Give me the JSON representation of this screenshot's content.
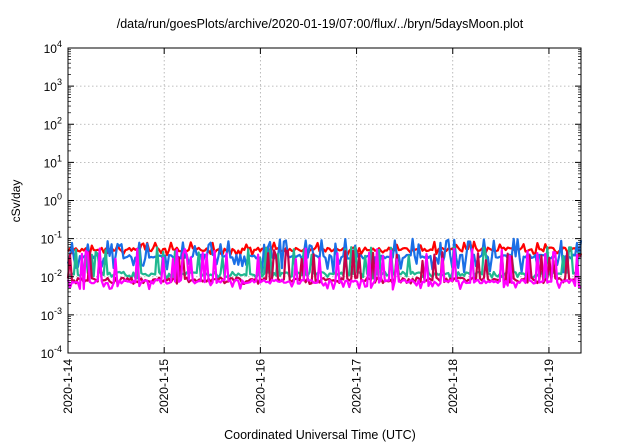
{
  "chart_data": {
    "type": "line",
    "title": "/data/run/goesPlots/archive/2020-01-19/07:00/flux/../bryn/5daysMoon.plot",
    "xlabel": "Coordinated Universal Time (UTC)",
    "ylabel": "cSv/day",
    "y_scale": "log",
    "grid": true,
    "xlim": [
      "2020-01-14 00:00",
      "2020-01-19 08:00"
    ],
    "ylim": [
      0.0001,
      10000
    ],
    "x_ticks": [
      "2020-1-14",
      "2020-1-15",
      "2020-1-16",
      "2020-1-17",
      "2020-1-18",
      "2020-1-19"
    ],
    "y_ticks": [
      {
        "value": 0.0001,
        "mantissa": "10",
        "exp": "-4"
      },
      {
        "value": 0.001,
        "mantissa": "10",
        "exp": "-3"
      },
      {
        "value": 0.01,
        "mantissa": "10",
        "exp": "-2"
      },
      {
        "value": 0.1,
        "mantissa": "10",
        "exp": "-1"
      },
      {
        "value": 1,
        "mantissa": "10",
        "exp": "0"
      },
      {
        "value": 10,
        "mantissa": "10",
        "exp": "1"
      },
      {
        "value": 100,
        "mantissa": "10",
        "exp": "2"
      },
      {
        "value": 1000,
        "mantissa": "10",
        "exp": "3"
      },
      {
        "value": 10000,
        "mantissa": "10",
        "exp": "4"
      }
    ],
    "series": [
      {
        "color": "#ff0000",
        "baseline": 0.052,
        "spike": 0.085,
        "dip": 0.036,
        "spike_rate": 0.22,
        "x": [
          "2020-01-14 00:00",
          "2020-01-19 08:00"
        ]
      },
      {
        "color": "#1a6fe6",
        "baseline": 0.034,
        "spike": 0.1,
        "dip": 0.012,
        "spike_rate": 0.3,
        "x": [
          "2020-01-14 00:00",
          "2020-01-19 08:00"
        ]
      },
      {
        "color": "#20b890",
        "baseline": 0.012,
        "spike": 0.06,
        "dip": 0.009,
        "spike_rate": 0.28,
        "x": [
          "2020-01-14 00:00",
          "2020-01-19 08:00"
        ]
      },
      {
        "color": "#c8004a",
        "baseline": 0.0085,
        "spike": 0.05,
        "dip": 0.0065,
        "spike_rate": 0.28,
        "x": [
          "2020-01-14 00:00",
          "2020-01-19 08:00"
        ]
      },
      {
        "color": "#ff00ff",
        "baseline": 0.0075,
        "spike": 0.055,
        "dip": 0.0045,
        "spike_rate": 0.32,
        "x": [
          "2020-01-14 00:00",
          "2020-01-19 08:00"
        ]
      }
    ]
  }
}
